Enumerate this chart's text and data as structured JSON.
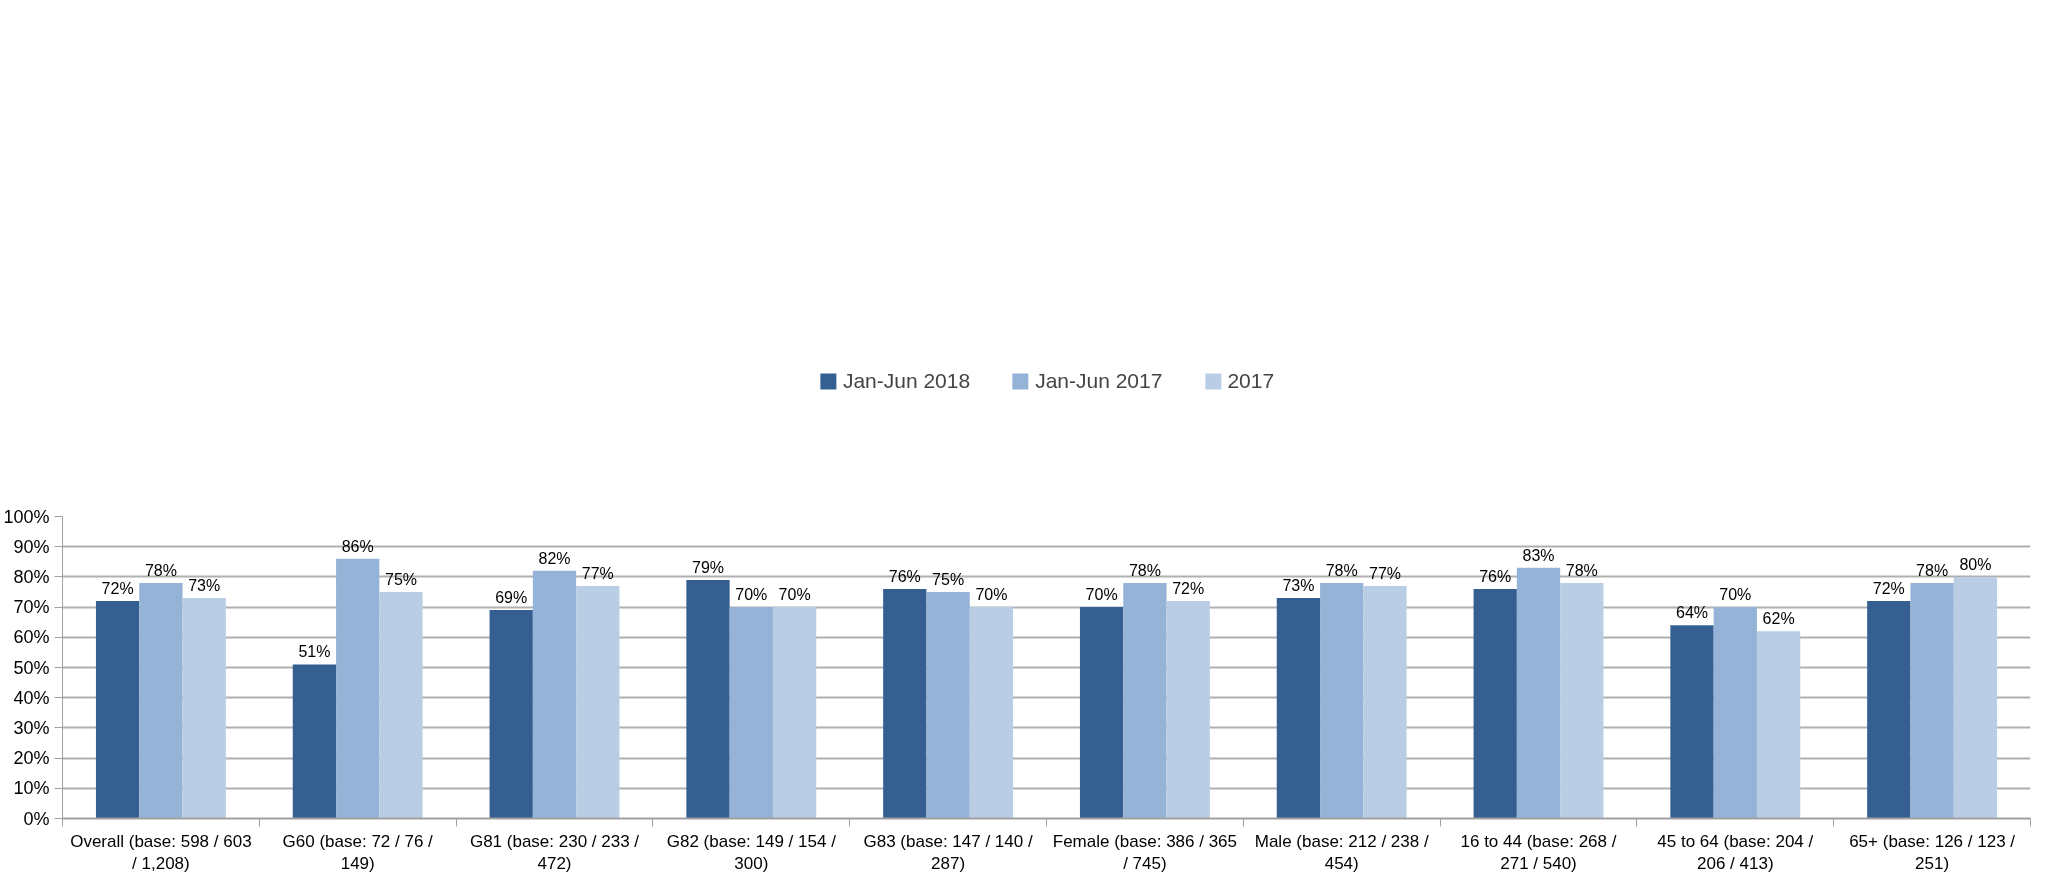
{
  "chart_data": {
    "type": "bar",
    "categories": [
      "Overall (base: 598 / 603 / 1,208)",
      "G60 (base: 72 / 76 / 149)",
      "G81 (base: 230 / 233 / 472)",
      "G82 (base: 149 / 154 / 300)",
      "G83 (base: 147 / 140 / 287)",
      "Female (base: 386 / 365 / 745)",
      "Male (base: 212 / 238 / 454)",
      "16 to 44 (base: 268 / 271 / 540)",
      "45 to 64 (base: 204 / 206 / 413)",
      "65+ (base: 126 / 123 / 251)"
    ],
    "series": [
      {
        "name": "Jan-Jun 2018",
        "color": "#355f91",
        "values": [
          72,
          51,
          69,
          79,
          76,
          70,
          73,
          76,
          64,
          72
        ],
        "value_labels": [
          "72%",
          "51%",
          "69%",
          "79%",
          "76%",
          "70%",
          "73%",
          "76%",
          "64%",
          "72%"
        ]
      },
      {
        "name": "Jan-Jun 2017",
        "color": "#95b3d7",
        "values": [
          78,
          86,
          82,
          70,
          75,
          78,
          78,
          83,
          70,
          78
        ],
        "value_labels": [
          "78%",
          "86%",
          "82%",
          "70%",
          "75%",
          "78%",
          "78%",
          "83%",
          "70%",
          "78%"
        ]
      },
      {
        "name": "2017",
        "color": "#b9cde5",
        "values": [
          73,
          75,
          77,
          70,
          70,
          72,
          77,
          78,
          62,
          80
        ],
        "value_labels": [
          "73%",
          "75%",
          "77%",
          "70%",
          "70%",
          "72%",
          "77%",
          "78%",
          "62%",
          "80%"
        ]
      }
    ],
    "ylim": [
      0,
      100
    ],
    "yticks": [
      {
        "value": 0,
        "label": "0%"
      },
      {
        "value": 10,
        "label": "10%"
      },
      {
        "value": 20,
        "label": "20%"
      },
      {
        "value": 30,
        "label": "30%"
      },
      {
        "value": 40,
        "label": "40%"
      },
      {
        "value": 50,
        "label": "50%"
      },
      {
        "value": 60,
        "label": "60%"
      },
      {
        "value": 70,
        "label": "70%"
      },
      {
        "value": 80,
        "label": "80%"
      },
      {
        "value": 90,
        "label": "90%"
      },
      {
        "value": 100,
        "label": "100%"
      }
    ],
    "grid": "y",
    "legend": "top"
  }
}
